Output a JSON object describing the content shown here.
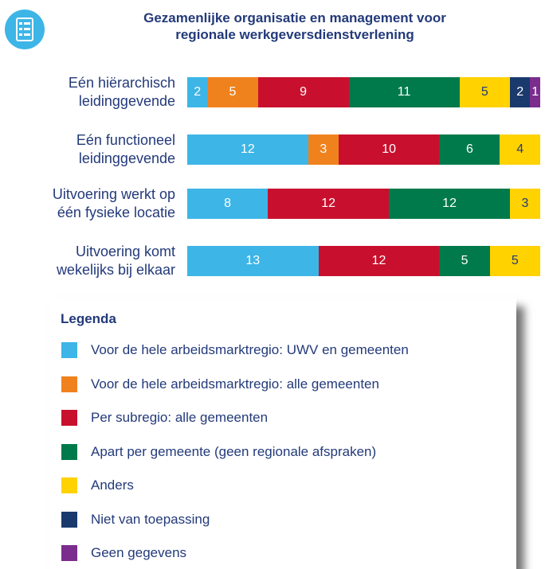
{
  "chart_data": {
    "type": "stacked-bar-horizontal",
    "title": "Gezamenlijke organisatie en management voor\nregionale werkgeversdienstverlening",
    "categories": [
      "Eén hiërarchisch\nleidinggevende",
      "Eén functioneel\nleidinggevende",
      "Uitvoering werkt op\néén fysieke locatie",
      "Uitvoering komt\nwekelijks bij elkaar"
    ],
    "legend_title": "Legenda",
    "series": [
      {
        "name": "Voor de hele arbeidsmarktregio: UWV en gemeenten",
        "color": "#3db5e6",
        "values": [
          2,
          12,
          8,
          13
        ]
      },
      {
        "name": "Voor de hele arbeidsmarktregio: alle gemeenten",
        "color": "#f0821e",
        "values": [
          5,
          3,
          0,
          0
        ]
      },
      {
        "name": "Per subregio: alle gemeenten",
        "color": "#c8102e",
        "values": [
          9,
          10,
          12,
          12
        ]
      },
      {
        "name": "Apart per gemeente (geen regionale afspraken)",
        "color": "#007a4b",
        "values": [
          11,
          6,
          12,
          5
        ]
      },
      {
        "name": "Anders",
        "color": "#ffd200",
        "values": [
          5,
          4,
          3,
          5
        ]
      },
      {
        "name": "Niet van toepassing",
        "color": "#1a3a6e",
        "values": [
          2,
          0,
          0,
          0
        ]
      },
      {
        "name": "Geen gegevens",
        "color": "#7b2d8e",
        "values": [
          1,
          0,
          0,
          0
        ]
      }
    ],
    "xlim": [
      0,
      35
    ]
  }
}
